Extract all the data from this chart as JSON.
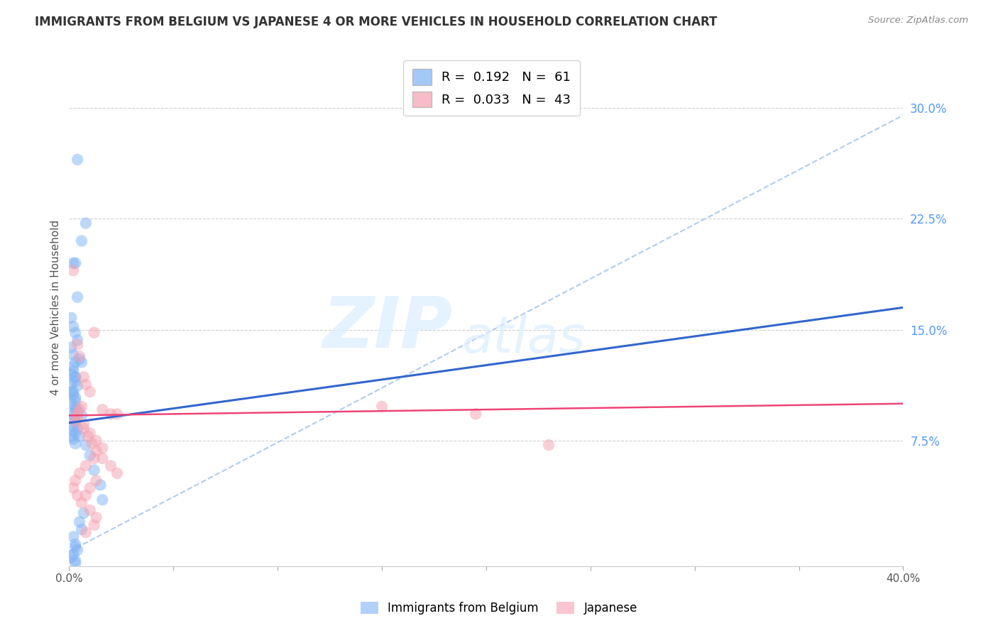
{
  "title": "IMMIGRANTS FROM BELGIUM VS JAPANESE 4 OR MORE VEHICLES IN HOUSEHOLD CORRELATION CHART",
  "source": "Source: ZipAtlas.com",
  "ylabel": "4 or more Vehicles in Household",
  "xlim": [
    0.0,
    0.4
  ],
  "ylim": [
    -0.01,
    0.34
  ],
  "yticks_right": [
    0.075,
    0.15,
    0.225,
    0.3
  ],
  "ytick_right_labels": [
    "7.5%",
    "15.0%",
    "22.5%",
    "30.0%"
  ],
  "xticks": [
    0.0,
    0.05,
    0.1,
    0.15,
    0.2,
    0.25,
    0.3,
    0.35,
    0.4
  ],
  "grid_color": "#d0d0d0",
  "background_color": "#ffffff",
  "legend_R1": "R =  0.192",
  "legend_N1": "N =  61",
  "legend_R2": "R =  0.033",
  "legend_N2": "N =  43",
  "legend_label1": "Immigrants from Belgium",
  "legend_label2": "Japanese",
  "blue_color": "#7fb3f5",
  "pink_color": "#f5a0b0",
  "blue_line_color": "#3366cc",
  "pink_line_color": "#ee4477",
  "ref_line_color": "#b0ccee",
  "watermark_zip": "ZIP",
  "watermark_atlas": "atlas",
  "blue_trend_x": [
    0.0,
    0.4
  ],
  "blue_trend_y": [
    0.087,
    0.165
  ],
  "pink_trend_x": [
    0.0,
    0.4
  ],
  "pink_trend_y": [
    0.092,
    0.1
  ],
  "ref_line_x": [
    0.0,
    0.4
  ],
  "ref_line_y": [
    0.0,
    0.295
  ],
  "blue_dots_x": [
    0.004,
    0.002,
    0.006,
    0.008,
    0.003,
    0.004,
    0.001,
    0.002,
    0.003,
    0.004,
    0.001,
    0.002,
    0.003,
    0.002,
    0.003,
    0.001,
    0.001,
    0.002,
    0.003,
    0.003,
    0.004,
    0.006,
    0.002,
    0.003,
    0.002,
    0.002,
    0.003,
    0.001,
    0.002,
    0.003,
    0.005,
    0.006,
    0.002,
    0.001,
    0.003,
    0.003,
    0.004,
    0.002,
    0.003,
    0.001,
    0.003,
    0.002,
    0.003,
    0.004,
    0.005,
    0.008,
    0.01,
    0.012,
    0.015,
    0.016,
    0.007,
    0.005,
    0.006,
    0.002,
    0.003,
    0.003,
    0.004,
    0.002,
    0.001,
    0.003,
    0.003
  ],
  "blue_dots_y": [
    0.265,
    0.195,
    0.21,
    0.222,
    0.195,
    0.172,
    0.158,
    0.152,
    0.148,
    0.143,
    0.138,
    0.133,
    0.128,
    0.122,
    0.118,
    0.113,
    0.108,
    0.106,
    0.102,
    0.098,
    0.095,
    0.092,
    0.09,
    0.088,
    0.085,
    0.082,
    0.08,
    0.078,
    0.076,
    0.073,
    0.13,
    0.128,
    0.125,
    0.12,
    0.118,
    0.115,
    0.112,
    0.108,
    0.104,
    0.1,
    0.096,
    0.093,
    0.088,
    0.083,
    0.078,
    0.072,
    0.065,
    0.055,
    0.045,
    0.035,
    0.026,
    0.02,
    0.015,
    0.01,
    0.005,
    0.003,
    0.001,
    -0.002,
    -0.004,
    -0.006,
    -0.008
  ],
  "pink_dots_x": [
    0.002,
    0.004,
    0.005,
    0.007,
    0.008,
    0.01,
    0.012,
    0.006,
    0.004,
    0.003,
    0.007,
    0.009,
    0.011,
    0.013,
    0.016,
    0.02,
    0.023,
    0.013,
    0.01,
    0.008,
    0.005,
    0.004,
    0.007,
    0.01,
    0.013,
    0.016,
    0.012,
    0.008,
    0.005,
    0.003,
    0.002,
    0.004,
    0.006,
    0.01,
    0.013,
    0.016,
    0.02,
    0.023,
    0.012,
    0.008,
    0.15,
    0.195,
    0.23
  ],
  "pink_dots_y": [
    0.19,
    0.14,
    0.132,
    0.118,
    0.113,
    0.108,
    0.148,
    0.098,
    0.093,
    0.088,
    0.083,
    0.078,
    0.073,
    0.068,
    0.063,
    0.058,
    0.053,
    0.048,
    0.043,
    0.038,
    0.096,
    0.091,
    0.086,
    0.08,
    0.075,
    0.07,
    0.063,
    0.058,
    0.053,
    0.048,
    0.043,
    0.038,
    0.033,
    0.028,
    0.023,
    0.096,
    0.093,
    0.093,
    0.018,
    0.013,
    0.098,
    0.093,
    0.072
  ]
}
